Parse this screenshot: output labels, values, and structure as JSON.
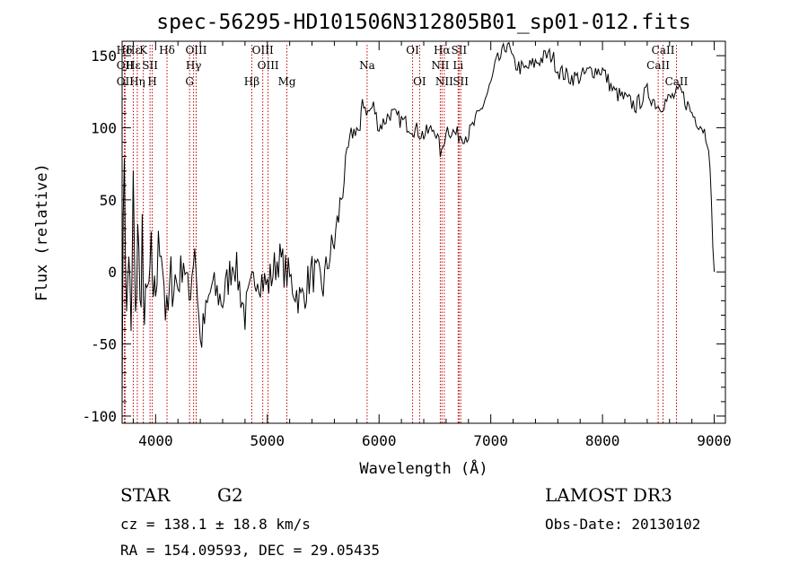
{
  "chart_data": {
    "type": "line",
    "title": "spec-56295-HD101506N312805B01_sp01-012.fits",
    "xlabel": "Wavelength (Å)",
    "ylabel": "Flux (relative)",
    "xlim": [
      3700,
      9100
    ],
    "ylim": [
      -105,
      160
    ],
    "xticks": [
      4000,
      5000,
      6000,
      7000,
      8000,
      9000
    ],
    "yticks": [
      -100,
      -50,
      0,
      50,
      100,
      150
    ],
    "series": [
      {
        "name": "flux",
        "x": [
          3700,
          3720,
          3740,
          3760,
          3780,
          3800,
          3820,
          3840,
          3860,
          3880,
          3900,
          3920,
          3940,
          3960,
          3980,
          4000,
          4050,
          4100,
          4150,
          4200,
          4250,
          4300,
          4350,
          4400,
          4500,
          4600,
          4700,
          4800,
          4900,
          5000,
          5100,
          5200,
          5300,
          5400,
          5500,
          5550,
          5600,
          5650,
          5700,
          5750,
          5800,
          5830,
          5850,
          5900,
          5950,
          6000,
          6100,
          6200,
          6300,
          6400,
          6500,
          6560,
          6600,
          6700,
          6800,
          6900,
          6950,
          7000,
          7050,
          7100,
          7150,
          7200,
          7300,
          7400,
          7500,
          7550,
          7600,
          7700,
          7800,
          7900,
          8000,
          8100,
          8200,
          8300,
          8400,
          8500,
          8600,
          8700,
          8800,
          8900,
          8950,
          9000
        ],
        "values": [
          -60,
          90,
          -40,
          20,
          -55,
          60,
          -45,
          40,
          -30,
          30,
          -60,
          10,
          -30,
          20,
          -40,
          -10,
          30,
          -40,
          0,
          -10,
          10,
          -20,
          20,
          -50,
          -10,
          -20,
          10,
          -30,
          0,
          -10,
          10,
          -5,
          -20,
          0,
          -10,
          10,
          20,
          45,
          75,
          95,
          100,
          95,
          120,
          110,
          115,
          100,
          110,
          105,
          100,
          95,
          100,
          80,
          100,
          95,
          95,
          110,
          120,
          130,
          145,
          150,
          160,
          145,
          140,
          145,
          150,
          150,
          140,
          135,
          135,
          140,
          140,
          125,
          120,
          115,
          125,
          115,
          120,
          125,
          110,
          100,
          90,
          0
        ]
      }
    ],
    "line_markers": [
      {
        "label": "Hδ",
        "x": 3720,
        "row": 1
      },
      {
        "label": "OII",
        "x": 3727,
        "row": 2
      },
      {
        "label": "OII",
        "x": 3727,
        "row": 3
      },
      {
        "label": "Hε",
        "x": 3800,
        "row": 1
      },
      {
        "label": "Hε",
        "x": 3800,
        "row": 2
      },
      {
        "label": "Hη",
        "x": 3836,
        "row": 3
      },
      {
        "label": "K",
        "x": 3890,
        "row": 1
      },
      {
        "label": "SII",
        "x": 3950,
        "row": 2
      },
      {
        "label": "H",
        "x": 3970,
        "row": 3
      },
      {
        "label": "Hδ",
        "x": 4102,
        "row": 1
      },
      {
        "label": "OIII",
        "x": 4363,
        "row": 1
      },
      {
        "label": "Hγ",
        "x": 4340,
        "row": 2
      },
      {
        "label": "G",
        "x": 4304,
        "row": 3
      },
      {
        "label": "OIII",
        "x": 4959,
        "row": 1
      },
      {
        "label": "OIII",
        "x": 5007,
        "row": 2
      },
      {
        "label": "Hβ",
        "x": 4861,
        "row": 3
      },
      {
        "label": "Mg",
        "x": 5175,
        "row": 3
      },
      {
        "label": "Na",
        "x": 5893,
        "row": 2
      },
      {
        "label": "OI",
        "x": 6300,
        "row": 1
      },
      {
        "label": "OI",
        "x": 6363,
        "row": 3
      },
      {
        "label": "Hα",
        "x": 6563,
        "row": 1
      },
      {
        "label": "NII",
        "x": 6548,
        "row": 2
      },
      {
        "label": "NII",
        "x": 6584,
        "row": 3
      },
      {
        "label": "SII",
        "x": 6716,
        "row": 1
      },
      {
        "label": "Li",
        "x": 6708,
        "row": 2
      },
      {
        "label": "SII",
        "x": 6731,
        "row": 3
      },
      {
        "label": "CaII",
        "x": 8498,
        "row": 2
      },
      {
        "label": "CaII",
        "x": 8542,
        "row": 1
      },
      {
        "label": "CaII",
        "x": 8662,
        "row": 3
      }
    ]
  },
  "info": {
    "class": "STAR",
    "subclass": "G2",
    "survey": "LAMOST DR3",
    "cz": "cz = 138.1 ± 18.8 km/s",
    "obs_date": "Obs-Date: 20130102",
    "coords": "RA = 154.09593, DEC =  29.05435"
  },
  "colors": {
    "line": "#000000",
    "marker": "#c00000"
  }
}
